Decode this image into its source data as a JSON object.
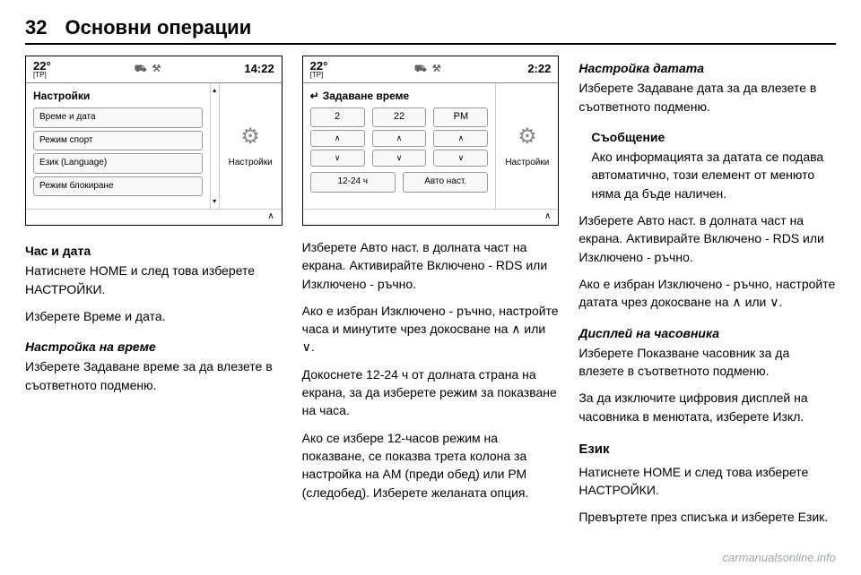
{
  "page_number": "32",
  "header_title": "Основни операции",
  "watermark": "carmanualsonline.info",
  "screen1": {
    "temp": "22°",
    "tp": "[TP]",
    "clock": "14:22",
    "title": "Настройки",
    "items": [
      "Време и дата",
      "Режим спорт",
      "Език (Language)",
      "Режим блокиране"
    ],
    "side_label": "Настройки"
  },
  "screen2": {
    "temp": "22°",
    "tp": "[TP]",
    "clock": "2:22",
    "title": "Задаване време",
    "vals": [
      "2",
      "22",
      "PM"
    ],
    "btn_1224": "12-24 ч",
    "btn_auto": "Авто наст.",
    "side_label": "Настройки"
  },
  "col1": {
    "h_time_date": "Час и дата",
    "p1a": "Натиснете HOME и след това изберете НАСТРОЙКИ.",
    "p1b": "Изберете Време и дата.",
    "h_set_time": "Настройка на време",
    "p2": "Изберете Задаване време за да влезете в съответното подменю."
  },
  "col2": {
    "p1": "Изберете Авто наст. в долната част на екрана. Активирайте Включено - RDS или Изключено - ръчно.",
    "p2": "Ако е избран Изключено - ръчно, настройте часа и минутите чрез докосване на ∧ или ∨.",
    "p3": "Докоснете 12-24 ч от долната страна на екрана, за да изберете режим за показване на часа.",
    "p4": "Ако се избере 12-часов режим на показване, се показва трета колона за настройка на АМ (преди обед) или РМ (следобед). Изберете желаната опция."
  },
  "col3": {
    "h_set_date": "Настройка датата",
    "p1": "Изберете Задаване дата за да влезете в съответното подменю.",
    "note_h": "Съобщение",
    "note_p": "Ако информацията за датата се подава автоматично, този елемент от менюто няма да бъде наличен.",
    "p2": "Изберете Авто наст. в долната част на екрана. Активирайте Включено - RDS или Изключено - ръчно.",
    "p3": "Ако е избран Изключено - ръчно, настройте датата чрез докосване на ∧ или ∨.",
    "h_clock": "Дисплей на часовника",
    "p4": "Изберете Показване часовник за да влезете в съответното подменю.",
    "p5": "За да изключите цифровия дисплей на часовника в менютата, изберете Изкл.",
    "h_lang": "Език",
    "p6": "Натиснете HOME и след това изберете НАСТРОЙКИ.",
    "p7": "Превъртете през списъка и изберете Език."
  }
}
